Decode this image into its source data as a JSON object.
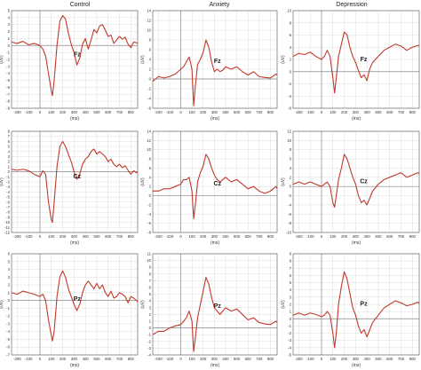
{
  "columns": [
    "Control",
    "Anxiety",
    "Depression"
  ],
  "x_label": "(ms)",
  "y_label": "(uV)",
  "x_ticks": [
    -200,
    -100,
    0,
    100,
    200,
    300,
    400,
    500,
    600,
    700,
    800
  ],
  "colors": {
    "erp_line": "#c0392b",
    "grid": "#dcdcdc",
    "frame": "#555555",
    "baseline": "#8a8a8a"
  },
  "chart_data": [
    {
      "type": "line",
      "group": "Control",
      "electrode": "Fz",
      "ylim": [
        -9,
        5
      ],
      "yticks": [
        5,
        4,
        3,
        2,
        1,
        0,
        -1,
        -2,
        -3,
        -4,
        -5,
        -6,
        -7,
        -8,
        -9
      ],
      "xlim": [
        -250,
        860
      ],
      "x": [
        -250,
        -200,
        -150,
        -100,
        -50,
        0,
        25,
        50,
        75,
        100,
        110,
        125,
        150,
        175,
        200,
        225,
        250,
        275,
        300,
        325,
        350,
        375,
        400,
        425,
        450,
        475,
        500,
        525,
        550,
        575,
        600,
        625,
        650,
        675,
        700,
        725,
        750,
        775,
        800,
        825,
        850,
        860
      ],
      "y": [
        0.5,
        0.3,
        0.6,
        0.1,
        0.3,
        0.0,
        -0.5,
        -1.5,
        -4.0,
        -6.5,
        -7.2,
        -5.0,
        0.0,
        3.5,
        4.3,
        3.8,
        1.8,
        0.2,
        -1.0,
        -2.8,
        -1.8,
        0.2,
        1.0,
        -0.5,
        0.8,
        2.3,
        1.8,
        2.8,
        3.0,
        2.2,
        1.3,
        1.5,
        0.3,
        0.8,
        1.3,
        0.9,
        1.2,
        0.2,
        -0.3,
        0.5,
        0.4,
        0.3
      ]
    },
    {
      "type": "line",
      "group": "Anxiety",
      "electrode": "Fz",
      "ylim": [
        -6,
        14
      ],
      "yticks": [
        14,
        12,
        10,
        8,
        6,
        4,
        2,
        0,
        -2,
        -4,
        -6
      ],
      "xlim": [
        -250,
        860
      ],
      "x": [
        -250,
        -200,
        -150,
        -100,
        -50,
        0,
        25,
        50,
        75,
        100,
        115,
        130,
        150,
        175,
        200,
        225,
        250,
        275,
        300,
        325,
        350,
        375,
        400,
        450,
        500,
        550,
        600,
        650,
        700,
        750,
        800,
        850,
        860
      ],
      "y": [
        -0.5,
        0.5,
        0.2,
        0.5,
        1.0,
        2.0,
        2.5,
        3.5,
        4.5,
        2.0,
        -5.5,
        -1.5,
        3.0,
        4.0,
        5.5,
        8.0,
        6.5,
        3.5,
        1.5,
        2.0,
        1.5,
        1.8,
        2.5,
        2.0,
        2.5,
        1.5,
        0.8,
        1.5,
        0.5,
        0.3,
        0.2,
        1.0,
        0.8
      ]
    },
    {
      "type": "line",
      "group": "Depression",
      "electrode": "Fz",
      "ylim": [
        -6,
        10
      ],
      "yticks": [
        10,
        8,
        6,
        4,
        2,
        0,
        -2,
        -4,
        -6
      ],
      "xlim": [
        -250,
        860
      ],
      "x": [
        -250,
        -200,
        -150,
        -100,
        -50,
        0,
        25,
        50,
        75,
        100,
        115,
        130,
        150,
        175,
        200,
        225,
        250,
        275,
        300,
        325,
        350,
        375,
        400,
        425,
        450,
        500,
        550,
        600,
        650,
        700,
        750,
        800,
        850,
        860
      ],
      "y": [
        2.5,
        3.0,
        2.8,
        3.2,
        2.5,
        2.0,
        2.5,
        3.5,
        2.5,
        -1.0,
        -3.5,
        -1.0,
        2.5,
        4.5,
        6.5,
        6.0,
        4.0,
        2.5,
        1.5,
        0.2,
        -1.0,
        -0.5,
        -1.5,
        0.5,
        1.5,
        2.5,
        3.5,
        4.0,
        4.5,
        4.2,
        3.5,
        4.0,
        4.3,
        4.2
      ]
    },
    {
      "type": "line",
      "group": "Control",
      "electrode": "Cz",
      "ylim": [
        -12,
        8
      ],
      "yticks": [
        8,
        7,
        6,
        5,
        4,
        3,
        2,
        1,
        0,
        -1,
        -2,
        -3,
        -4,
        -5,
        -6,
        -7,
        -8,
        -9,
        -10,
        -11,
        -12
      ],
      "xlim": [
        -250,
        860
      ],
      "x": [
        -250,
        -200,
        -150,
        -100,
        -50,
        0,
        25,
        50,
        75,
        100,
        110,
        125,
        150,
        175,
        200,
        225,
        250,
        275,
        300,
        325,
        350,
        375,
        400,
        425,
        450,
        475,
        500,
        525,
        550,
        575,
        600,
        625,
        650,
        675,
        700,
        725,
        750,
        775,
        800,
        825,
        850,
        860
      ],
      "y": [
        0.5,
        0.3,
        0.5,
        0.2,
        -0.5,
        -1.0,
        0.2,
        -0.5,
        -6.0,
        -9.5,
        -10.0,
        -6.0,
        1.0,
        5.0,
        6.0,
        5.0,
        3.5,
        2.0,
        0.0,
        -1.5,
        -0.5,
        1.5,
        2.5,
        3.0,
        4.0,
        4.5,
        3.5,
        4.0,
        3.5,
        3.0,
        2.0,
        2.5,
        1.5,
        1.0,
        1.5,
        0.8,
        1.2,
        0.3,
        -0.5,
        0.2,
        -0.2,
        0.0
      ]
    },
    {
      "type": "line",
      "group": "Anxiety",
      "electrode": "Cz",
      "ylim": [
        -8,
        14
      ],
      "yticks": [
        14,
        12,
        10,
        8,
        6,
        4,
        2,
        0,
        -2,
        -4,
        -6,
        -8
      ],
      "xlim": [
        -250,
        860
      ],
      "x": [
        -250,
        -200,
        -150,
        -100,
        -50,
        0,
        25,
        50,
        75,
        100,
        115,
        130,
        150,
        175,
        200,
        225,
        250,
        275,
        300,
        325,
        350,
        375,
        400,
        450,
        500,
        550,
        600,
        650,
        700,
        750,
        800,
        850,
        860
      ],
      "y": [
        1.0,
        1.0,
        1.5,
        1.5,
        2.0,
        2.5,
        3.5,
        3.5,
        4.0,
        1.0,
        -5.0,
        -2.0,
        3.0,
        5.0,
        6.5,
        9.0,
        8.0,
        6.0,
        4.5,
        3.5,
        3.0,
        3.5,
        4.0,
        3.0,
        3.5,
        2.5,
        1.5,
        2.0,
        1.0,
        0.5,
        1.0,
        2.0,
        1.5
      ]
    },
    {
      "type": "line",
      "group": "Depression",
      "electrode": "Cz",
      "ylim": [
        -10,
        12
      ],
      "yticks": [
        12,
        10,
        8,
        6,
        4,
        2,
        0,
        -2,
        -4,
        -6,
        -8,
        -10
      ],
      "xlim": [
        -250,
        860
      ],
      "x": [
        -250,
        -200,
        -150,
        -100,
        -50,
        0,
        25,
        50,
        75,
        100,
        115,
        130,
        150,
        175,
        200,
        225,
        250,
        275,
        300,
        325,
        350,
        375,
        400,
        425,
        450,
        500,
        550,
        600,
        650,
        700,
        750,
        800,
        850,
        860
      ],
      "y": [
        0.5,
        1.0,
        0.5,
        1.0,
        0.5,
        0.0,
        0.5,
        1.0,
        0.0,
        -3.5,
        -4.5,
        -2.0,
        1.5,
        4.0,
        7.0,
        6.0,
        4.0,
        2.0,
        0.5,
        -2.0,
        -3.5,
        -3.0,
        -4.0,
        -2.5,
        -1.0,
        0.5,
        1.5,
        2.0,
        2.5,
        3.0,
        2.0,
        2.5,
        3.0,
        2.8
      ]
    },
    {
      "type": "line",
      "group": "Control",
      "electrode": "Pz",
      "ylim": [
        -7,
        6
      ],
      "yticks": [
        6,
        5,
        4,
        3,
        2,
        1,
        0,
        -1,
        -2,
        -3,
        -4,
        -5,
        -6,
        -7
      ],
      "xlim": [
        -250,
        860
      ],
      "x": [
        -250,
        -200,
        -150,
        -100,
        -50,
        0,
        25,
        50,
        75,
        100,
        110,
        125,
        150,
        175,
        200,
        225,
        250,
        275,
        300,
        325,
        350,
        375,
        400,
        425,
        450,
        475,
        500,
        525,
        550,
        575,
        600,
        625,
        650,
        675,
        700,
        725,
        750,
        775,
        800,
        825,
        850,
        860
      ],
      "y": [
        1.0,
        0.8,
        1.2,
        1.0,
        0.8,
        0.5,
        0.8,
        0.0,
        -2.5,
        -4.5,
        -5.2,
        -4.0,
        0.5,
        3.0,
        3.8,
        3.0,
        1.5,
        0.5,
        -0.5,
        -1.3,
        -0.5,
        1.0,
        2.0,
        2.5,
        2.0,
        1.5,
        2.2,
        1.5,
        2.0,
        1.0,
        0.5,
        1.2,
        0.3,
        0.5,
        1.0,
        0.8,
        0.5,
        -0.3,
        0.5,
        0.3,
        0.0,
        -0.2
      ]
    },
    {
      "type": "line",
      "group": "Anxiety",
      "electrode": "Pz",
      "ylim": [
        -4,
        11
      ],
      "yticks": [
        11,
        10,
        9,
        8,
        7,
        6,
        5,
        4,
        3,
        2,
        1,
        0,
        -1,
        -2,
        -3,
        -4
      ],
      "xlim": [
        -250,
        860
      ],
      "x": [
        -250,
        -200,
        -150,
        -100,
        -50,
        0,
        25,
        50,
        75,
        100,
        115,
        130,
        150,
        175,
        200,
        225,
        250,
        275,
        300,
        325,
        350,
        375,
        400,
        450,
        500,
        550,
        600,
        650,
        700,
        750,
        800,
        850,
        860
      ],
      "y": [
        -1.0,
        -0.5,
        -0.5,
        0.0,
        0.3,
        0.5,
        1.0,
        1.5,
        2.5,
        1.0,
        -3.5,
        -1.5,
        1.5,
        3.5,
        5.5,
        7.5,
        6.5,
        4.5,
        3.0,
        2.5,
        2.0,
        2.5,
        3.0,
        2.5,
        2.8,
        2.0,
        1.2,
        1.5,
        0.8,
        0.6,
        0.5,
        1.0,
        0.8
      ]
    },
    {
      "type": "line",
      "group": "Depression",
      "electrode": "Pz",
      "ylim": [
        -5,
        9
      ],
      "yticks": [
        9,
        8,
        7,
        6,
        5,
        4,
        3,
        2,
        1,
        0,
        -1,
        -2,
        -3,
        -4,
        -5
      ],
      "xlim": [
        -250,
        860
      ],
      "x": [
        -250,
        -200,
        -150,
        -100,
        -50,
        0,
        25,
        50,
        75,
        100,
        115,
        130,
        150,
        175,
        200,
        225,
        250,
        275,
        300,
        325,
        350,
        375,
        400,
        425,
        450,
        500,
        550,
        600,
        650,
        700,
        750,
        800,
        850,
        860
      ],
      "y": [
        0.5,
        0.8,
        0.5,
        0.8,
        0.6,
        0.3,
        0.5,
        1.0,
        0.5,
        -2.0,
        -4.0,
        -2.0,
        2.0,
        4.5,
        6.5,
        5.5,
        3.5,
        1.5,
        0.5,
        -1.0,
        -2.0,
        -1.5,
        -2.5,
        -1.5,
        -0.5,
        0.5,
        1.5,
        2.0,
        2.5,
        2.2,
        1.8,
        2.0,
        2.3,
        2.1
      ]
    }
  ]
}
